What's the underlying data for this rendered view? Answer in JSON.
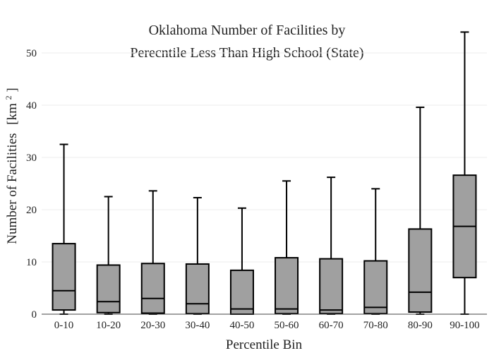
{
  "chart_data": {
    "type": "box",
    "title_lines": [
      "Oklahoma Number of Facilities by",
      "Perecntile Less Than High School (State)"
    ],
    "xlabel": "Percentile Bin",
    "ylabel": "Number of Facilities",
    "ylabel_unit": "[km",
    "ylabel_sup": "2",
    "ylabel_close": "]",
    "ylim": [
      0,
      55
    ],
    "yticks": [
      0,
      10,
      20,
      30,
      40,
      50
    ],
    "grid": true,
    "box_color": "#a0a0a0",
    "categories": [
      "0-10",
      "10-20",
      "20-30",
      "30-40",
      "40-50",
      "50-60",
      "60-70",
      "70-80",
      "80-90",
      "90-100"
    ],
    "boxes": [
      {
        "min": 0,
        "q1": 0.8,
        "median": 4.5,
        "q3": 13.5,
        "max": 32.5
      },
      {
        "min": 0,
        "q1": 0.3,
        "median": 2.4,
        "q3": 9.4,
        "max": 22.5
      },
      {
        "min": 0,
        "q1": 0.2,
        "median": 3.0,
        "q3": 9.7,
        "max": 23.6
      },
      {
        "min": 0,
        "q1": 0.1,
        "median": 2.0,
        "q3": 9.6,
        "max": 22.3
      },
      {
        "min": 0,
        "q1": 0.0,
        "median": 1.0,
        "q3": 8.4,
        "max": 20.3
      },
      {
        "min": 0,
        "q1": 0.1,
        "median": 1.0,
        "q3": 10.8,
        "max": 25.5
      },
      {
        "min": 0,
        "q1": 0.1,
        "median": 0.8,
        "q3": 10.6,
        "max": 26.2
      },
      {
        "min": 0,
        "q1": 0.1,
        "median": 1.3,
        "q3": 10.2,
        "max": 24.0
      },
      {
        "min": 0,
        "q1": 0.4,
        "median": 4.2,
        "q3": 16.3,
        "max": 39.6
      },
      {
        "min": 0,
        "q1": 7.0,
        "median": 16.8,
        "q3": 26.6,
        "max": 54.0
      }
    ]
  }
}
